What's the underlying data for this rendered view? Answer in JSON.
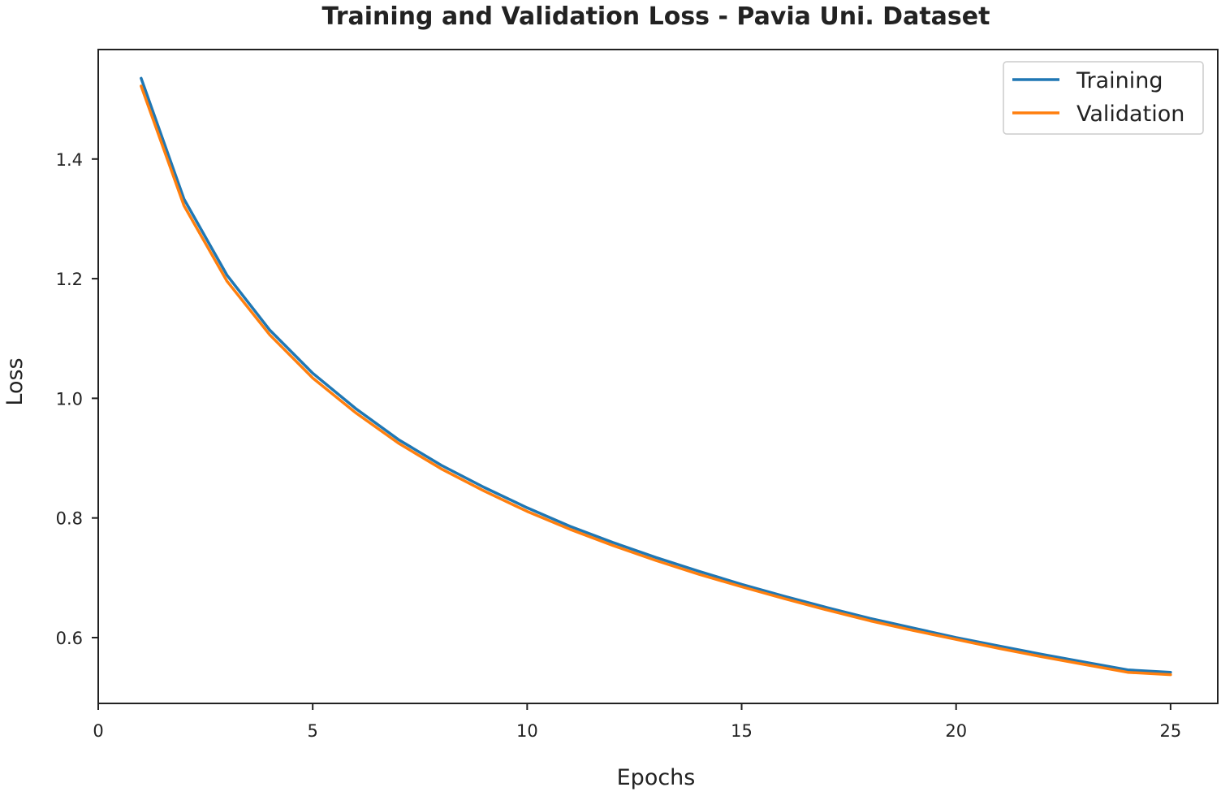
{
  "chart_data": {
    "type": "line",
    "title": "Training and Validation Loss - Pavia Uni. Dataset",
    "xlabel": "Epochs",
    "ylabel": "Loss",
    "xlim": [
      0,
      26.1
    ],
    "ylim": [
      0.49,
      1.583
    ],
    "x_ticks": [
      0,
      5,
      10,
      15,
      20,
      25
    ],
    "y_ticks": [
      0.6,
      0.8,
      1.0,
      1.2,
      1.4
    ],
    "x_tick_labels": [
      "0",
      "5",
      "10",
      "15",
      "20",
      "25"
    ],
    "y_tick_labels": [
      "0.6",
      "0.8",
      "1.0",
      "1.2",
      "1.4"
    ],
    "grid": false,
    "legend": "upper right",
    "x": [
      1,
      2,
      3,
      4,
      5,
      6,
      7,
      8,
      9,
      10,
      11,
      12,
      13,
      14,
      15,
      16,
      17,
      18,
      19,
      20,
      21,
      22,
      23,
      24,
      25
    ],
    "series": [
      {
        "name": "Training",
        "color": "#1f77b4",
        "values": [
          1.535,
          1.333,
          1.206,
          1.114,
          1.042,
          0.983,
          0.931,
          0.888,
          0.851,
          0.817,
          0.786,
          0.759,
          0.734,
          0.711,
          0.689,
          0.669,
          0.65,
          0.632,
          0.616,
          0.6,
          0.586,
          0.572,
          0.559,
          0.546,
          0.542
        ]
      },
      {
        "name": "Validation",
        "color": "#ff7f0e",
        "values": [
          1.522,
          1.322,
          1.196,
          1.106,
          1.034,
          0.976,
          0.925,
          0.882,
          0.845,
          0.811,
          0.781,
          0.754,
          0.729,
          0.706,
          0.685,
          0.665,
          0.646,
          0.628,
          0.612,
          0.597,
          0.582,
          0.568,
          0.555,
          0.542,
          0.538
        ]
      }
    ]
  }
}
